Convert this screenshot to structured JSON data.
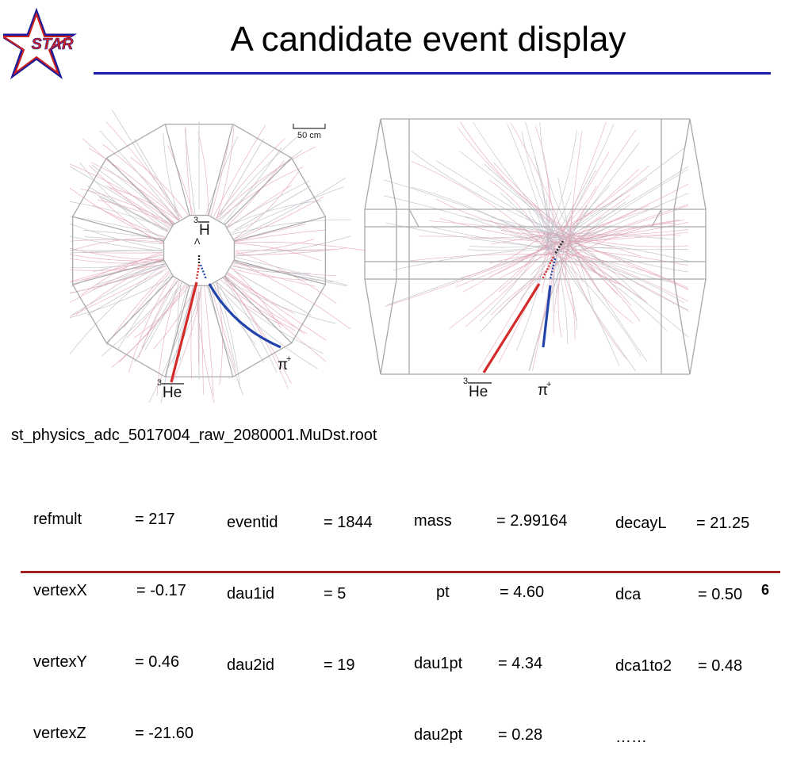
{
  "logo": {
    "text": "STAR"
  },
  "title": "A candidate event display",
  "figure": {
    "scale_label": "50 cm",
    "labels": {
      "hypertriton_left": "H",
      "hypertriton_sup": "3",
      "lambda": "Λ",
      "pion_left": "π",
      "pion_right": "π",
      "pion_sup": "+",
      "helium_left": "He",
      "helium_right": "He",
      "helium_sup": "3"
    },
    "colors": {
      "he3_track": "#d42a2a",
      "pion_track": "#2244aa",
      "background_tracks_red": "#e4a4b4",
      "background_tracks_gray": "#b8b8c4",
      "detector_frame": "#a8a8a8"
    }
  },
  "filename": "st_physics_adc_5017004_raw_2080001.MuDst.root",
  "params": {
    "col1": [
      {
        "key": "refmult",
        "value": "= 217"
      },
      {
        "key": "vertexX",
        "value": "= -0.17"
      },
      {
        "key": "vertexY",
        "value": "= 0.46"
      },
      {
        "key": "vertexZ",
        "value": "= -21.60"
      }
    ],
    "col2": [
      {
        "key": "eventid",
        "value": "= 1844"
      },
      {
        "key": "dau1id",
        "value": "= 5"
      },
      {
        "key": "dau2id",
        "value": "= 19"
      }
    ],
    "col3": [
      {
        "key": "mass",
        "value": "= 2.99164"
      },
      {
        "key": "pt",
        "value": "= 4.60"
      },
      {
        "key": "dau1pt",
        "value": "= 4.34"
      },
      {
        "key": "dau2pt",
        "value": "= 0.28"
      }
    ],
    "col4": [
      {
        "key": "decayL",
        "value": "= 21.25"
      },
      {
        "key": "dca",
        "value": "= 0.50"
      },
      {
        "key": "dca1to2",
        "value": "= 0.48"
      },
      {
        "key": "more",
        "value": "……"
      }
    ]
  },
  "page_number": "6"
}
